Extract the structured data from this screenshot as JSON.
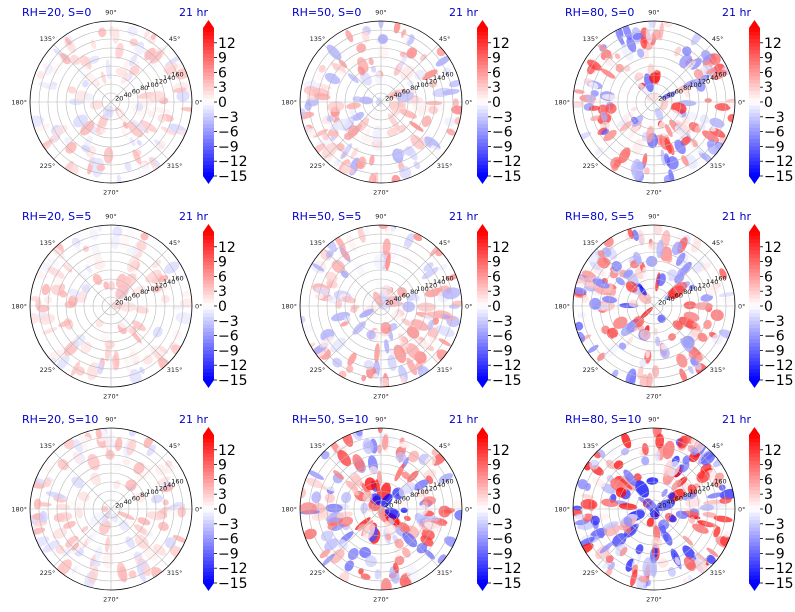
{
  "chart_data": {
    "type": "polar heatmap",
    "radial_ticks": [
      "20",
      "40",
      "60",
      "80",
      "100",
      "120",
      "140",
      "160"
    ],
    "angle_ticks": [
      "0°",
      "45°",
      "90°",
      "135°",
      "180°",
      "225°",
      "270°",
      "315°"
    ],
    "time_label": "21 hr",
    "colorbar": {
      "ticks": [
        "12",
        "9",
        "6",
        "3",
        "0",
        "−3",
        "−6",
        "−9",
        "−12",
        "−15"
      ],
      "range": [
        -15,
        15
      ],
      "colormap": "bwr",
      "extend": "both"
    },
    "panels": [
      {
        "title": "RH=20, S=0",
        "rh": 20,
        "s": 0,
        "field_amplitude": "weak"
      },
      {
        "title": "RH=50, S=0",
        "rh": 50,
        "s": 0,
        "field_amplitude": "moderate"
      },
      {
        "title": "RH=80, S=0",
        "rh": 80,
        "s": 0,
        "field_amplitude": "strong"
      },
      {
        "title": "RH=20, S=5",
        "rh": 20,
        "s": 5,
        "field_amplitude": "weak"
      },
      {
        "title": "RH=50, S=5",
        "rh": 50,
        "s": 5,
        "field_amplitude": "moderate"
      },
      {
        "title": "RH=80, S=5",
        "rh": 80,
        "s": 5,
        "field_amplitude": "strong"
      },
      {
        "title": "RH=20, S=10",
        "rh": 20,
        "s": 10,
        "field_amplitude": "weak"
      },
      {
        "title": "RH=50, S=10",
        "rh": 50,
        "s": 10,
        "field_amplitude": "strong"
      },
      {
        "title": "RH=80, S=10",
        "rh": 80,
        "s": 10,
        "field_amplitude": "very strong"
      }
    ]
  },
  "colors": {
    "title": "#0000cc",
    "positive": "#ff0000",
    "negative": "#0000ff",
    "neutral": "#ffffff",
    "grid": "#b8b8b8"
  }
}
